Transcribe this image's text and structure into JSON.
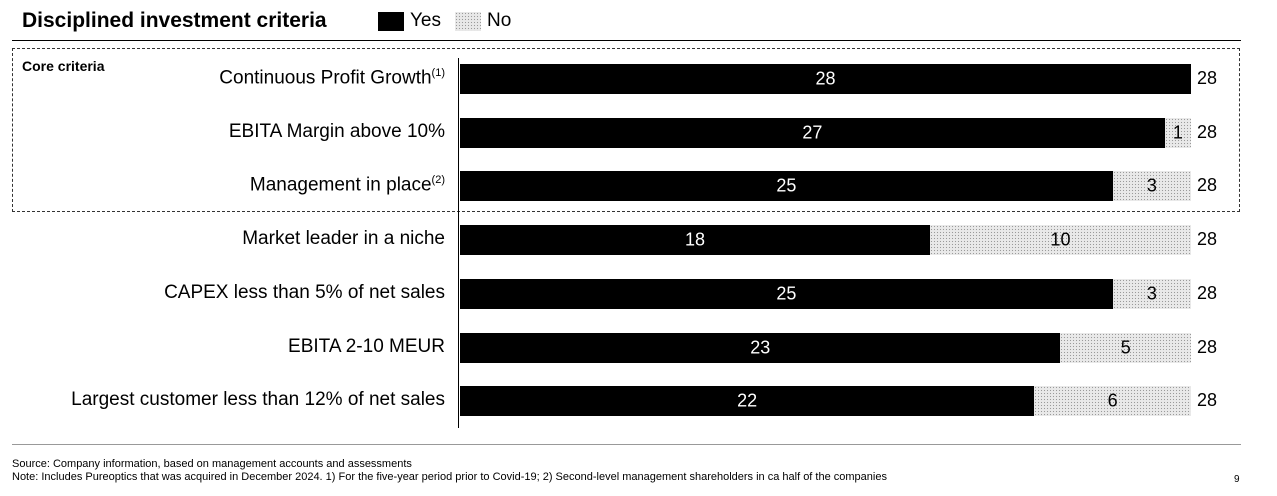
{
  "title": "Disciplined investment criteria",
  "legend": {
    "yes": "Yes",
    "no": "No"
  },
  "core_label": "Core criteria",
  "chart_data": {
    "type": "bar",
    "orientation": "horizontal",
    "stacked": true,
    "categories": [
      "Continuous Profit Growth",
      "EBITA Margin above 10%",
      "Management in place",
      "Market leader in a niche",
      "CAPEX less than 5% of net sales",
      "EBITA 2-10 MEUR",
      "Largest customer less than 12% of net sales"
    ],
    "footnote_markers": [
      "(1)",
      "",
      "(2)",
      "",
      "",
      "",
      ""
    ],
    "series": [
      {
        "name": "Yes",
        "values": [
          28,
          27,
          25,
          18,
          25,
          23,
          22
        ],
        "color": "#000000"
      },
      {
        "name": "No",
        "values": [
          0,
          1,
          3,
          10,
          3,
          5,
          6
        ],
        "color": "#e9e9e9"
      }
    ],
    "totals": [
      28,
      28,
      28,
      28,
      28,
      28,
      28
    ],
    "xlim": [
      0,
      28
    ]
  },
  "footer": {
    "source": "Source: Company information, based on management accounts and assessments",
    "note": "Note: Includes Pureoptics that was acquired in December 2024. 1) For the five-year period prior to Covid-19; 2) Second-level management shareholders in ca half of the companies",
    "page": "9"
  }
}
